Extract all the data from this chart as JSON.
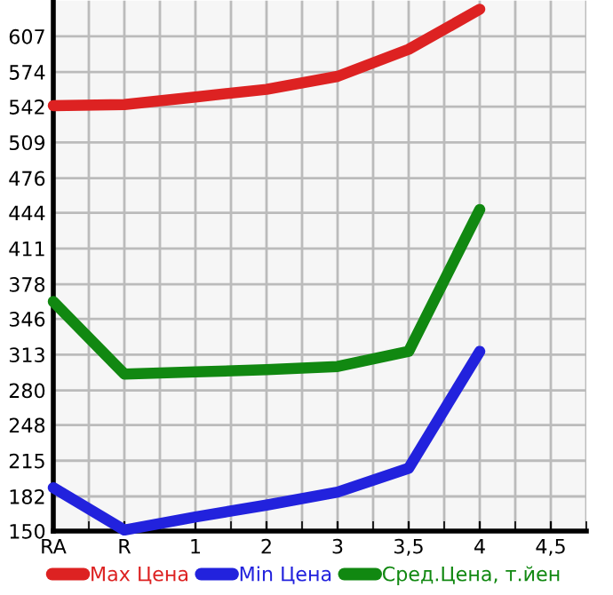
{
  "chart_data": {
    "type": "line",
    "categories": [
      "RA",
      "R",
      "1",
      "2",
      "3",
      "3,5",
      "4",
      "4,5"
    ],
    "series": [
      {
        "name": "Max Цена",
        "color": "#dd2222",
        "values": [
          543,
          544,
          551,
          558,
          570,
          595,
          632,
          null
        ]
      },
      {
        "name": "Min Цена",
        "color": "#2222dd",
        "values": [
          190,
          151,
          163,
          174,
          186,
          208,
          316,
          null
        ]
      },
      {
        "name": "Сред.Цена, т.йен",
        "color": "#118811",
        "values": [
          362,
          295,
          297,
          299,
          302,
          316,
          447,
          null
        ]
      }
    ],
    "ylim": [
      150,
      640
    ],
    "yticks": [
      150,
      182,
      215,
      248,
      280,
      313,
      346,
      378,
      411,
      444,
      476,
      509,
      542,
      574,
      607
    ],
    "grid": true,
    "legend": "bottom",
    "marker": "none",
    "line_style": "solid"
  }
}
